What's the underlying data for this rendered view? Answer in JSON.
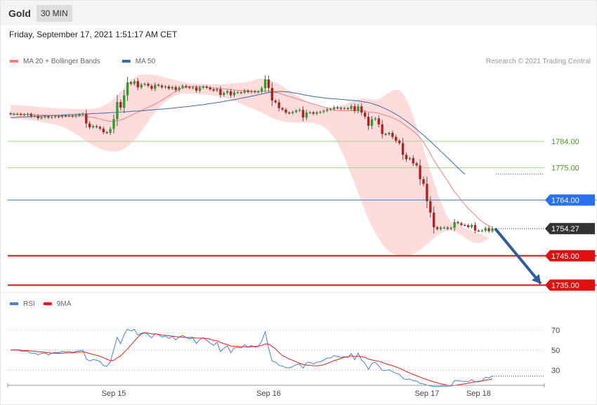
{
  "header": {
    "symbol": "Gold",
    "timeframe": "30 MIN"
  },
  "date_text": "Friday, September 17, 2021 1:51:17 AM CET",
  "colors": {
    "bb": "#f08080",
    "ma50": "#3a6aa8",
    "rsi": "#4a7fd4",
    "rsi_ma": "#e02020",
    "up": "#2ca02c",
    "down": "#b22222",
    "arrow": "#2f5d9a"
  },
  "chart_data": [
    {
      "type": "candlestick",
      "legend": [
        {
          "label": "MA 20 + Bollinger Bands",
          "color": "#f08080"
        },
        {
          "label": "MA 50",
          "color": "#3a6aa8"
        }
      ],
      "credit": "Research © 2021 Trading Central",
      "ylim": [
        1732,
        1813
      ],
      "x_ticks": [
        {
          "label": "Sep 15",
          "index": 30
        },
        {
          "label": "Sep 16",
          "index": 75
        },
        {
          "label": "Sep 17",
          "index": 121
        },
        {
          "label": "Sep 18",
          "index": 136
        }
      ],
      "levels": [
        {
          "value": 1784.0,
          "label": "1784.00",
          "kind": "resistance"
        },
        {
          "value": 1775.0,
          "label": "1775.00",
          "kind": "resistance"
        },
        {
          "value": 1764.0,
          "label": "1764.00",
          "kind": "pivot"
        },
        {
          "value": 1754.27,
          "label": "1754.27",
          "kind": "last"
        },
        {
          "value": 1745.0,
          "label": "1745.00",
          "kind": "support"
        },
        {
          "value": 1735.0,
          "label": "1735.00",
          "kind": "support"
        }
      ],
      "closes": [
        1793.3,
        1793.3,
        1793.3,
        1793.1,
        1793.1,
        1793.3,
        1792.6,
        1792.7,
        1791.9,
        1792.2,
        1792.5,
        1792.1,
        1792.3,
        1792.5,
        1792.3,
        1792.7,
        1792.6,
        1792.7,
        1792.5,
        1792.8,
        1793.1,
        1793.4,
        1790.1,
        1788.8,
        1789.2,
        1788.9,
        1788.3,
        1787.1,
        1786.9,
        1788.2,
        1791.6,
        1797.4,
        1795.5,
        1799.7,
        1804.1,
        1803.6,
        1804.5,
        1802.4,
        1803.3,
        1803.6,
        1802.9,
        1801.9,
        1803.3,
        1803.0,
        1802.4,
        1802.7,
        1802.0,
        1802.5,
        1801.5,
        1802.3,
        1802.9,
        1802.5,
        1802.2,
        1802.4,
        1801.3,
        1802.3,
        1802.7,
        1802.3,
        1801.7,
        1801.3,
        1801.8,
        1799.8,
        1800.5,
        1801.1,
        1799.7,
        1800.7,
        1800.7,
        1800.6,
        1801.3,
        1800.8,
        1801.1,
        1800.8,
        1801.0,
        1802.1,
        1805.1,
        1802.2,
        1797.9,
        1797.3,
        1795.3,
        1794.8,
        1793.8,
        1793.6,
        1794.0,
        1794.5,
        1794.7,
        1792.1,
        1793.8,
        1793.9,
        1793.4,
        1793.9,
        1794.0,
        1794.4,
        1794.9,
        1795.0,
        1795.6,
        1795.4,
        1795.1,
        1795.3,
        1795.1,
        1796.0,
        1794.4,
        1795.9,
        1793.8,
        1792.4,
        1789.3,
        1791.5,
        1791.8,
        1789.8,
        1786.5,
        1786.4,
        1786.9,
        1785.5,
        1784.2,
        1783.4,
        1779.4,
        1777.9,
        1778.3,
        1776.5,
        1775.8,
        1771.1,
        1769.5,
        1763.6,
        1759.7,
        1754.7,
        1754.1,
        1754.6,
        1754.6,
        1754.2,
        1754.5,
        1756.5,
        1756.1,
        1755.5,
        1755.4,
        1754.8,
        1755.5,
        1753.6,
        1753.5,
        1753.6,
        1754.4,
        1753.4,
        1754.3
      ],
      "ma20": [
        1793.4,
        1793.3,
        1793.3,
        1793.3,
        1793.2,
        1793.3,
        1793.2,
        1793.1,
        1793.0,
        1792.9,
        1792.9,
        1792.8,
        1792.8,
        1792.8,
        1792.7,
        1792.7,
        1792.7,
        1792.7,
        1792.7,
        1792.7,
        1792.7,
        1792.7,
        1792.5,
        1792.3,
        1792.1,
        1791.9,
        1791.6,
        1791.3,
        1791.0,
        1790.8,
        1790.8,
        1791.1,
        1791.3,
        1791.7,
        1792.3,
        1792.8,
        1793.4,
        1793.9,
        1794.5,
        1795.0,
        1795.6,
        1796.1,
        1796.7,
        1797.4,
        1798.1,
        1798.8,
        1799.5,
        1800.3,
        1801.0,
        1801.7,
        1802.2,
        1802.4,
        1802.7,
        1802.8,
        1802.7,
        1802.6,
        1802.5,
        1802.4,
        1802.3,
        1802.2,
        1802.1,
        1802.0,
        1801.9,
        1801.8,
        1801.6,
        1801.5,
        1801.4,
        1801.3,
        1801.3,
        1801.2,
        1801.1,
        1801.0,
        1801.0,
        1801.0,
        1801.1,
        1801.1,
        1800.9,
        1800.7,
        1800.4,
        1800.0,
        1799.6,
        1799.3,
        1799.0,
        1798.6,
        1798.2,
        1797.8,
        1797.5,
        1797.1,
        1796.7,
        1796.4,
        1796.0,
        1795.7,
        1795.4,
        1795.0,
        1794.6,
        1794.5,
        1794.5,
        1794.4,
        1794.4,
        1794.5,
        1794.4,
        1794.5,
        1794.4,
        1794.3,
        1794.0,
        1793.9,
        1793.8,
        1793.6,
        1793.2,
        1792.8,
        1792.5,
        1792.0,
        1791.5,
        1790.9,
        1790.1,
        1789.2,
        1788.4,
        1787.5,
        1786.5,
        1785.2,
        1783.8,
        1781.8,
        1779.8,
        1777.6,
        1775.8,
        1774.0,
        1772.3,
        1770.5,
        1768.6,
        1766.9,
        1765.4,
        1763.9,
        1762.5,
        1761.1,
        1760.0,
        1758.9,
        1757.7,
        1756.6,
        1755.9,
        1755.2,
        1754.7
      ],
      "bb_upper": [
        1796.5,
        1796.4,
        1796.4,
        1796.3,
        1796.2,
        1796.1,
        1796.0,
        1795.9,
        1795.8,
        1795.7,
        1795.6,
        1795.5,
        1795.4,
        1795.3,
        1795.3,
        1795.2,
        1795.2,
        1795.1,
        1795.1,
        1795.0,
        1795.0,
        1795.0,
        1795.0,
        1795.0,
        1795.1,
        1795.3,
        1795.6,
        1796.1,
        1796.7,
        1797.5,
        1798.5,
        1799.6,
        1800.8,
        1802.2,
        1803.7,
        1805.0,
        1805.7,
        1806.4,
        1806.8,
        1806.9,
        1806.9,
        1806.8,
        1806.6,
        1806.4,
        1806.1,
        1805.8,
        1805.5,
        1805.2,
        1804.9,
        1804.6,
        1804.3,
        1804.1,
        1803.9,
        1803.8,
        1803.7,
        1803.6,
        1803.5,
        1803.5,
        1803.5,
        1803.5,
        1803.5,
        1803.5,
        1803.5,
        1803.6,
        1803.7,
        1803.8,
        1803.9,
        1804.0,
        1804.1,
        1804.3,
        1804.6,
        1805.0,
        1805.3,
        1805.4,
        1805.3,
        1805.0,
        1804.6,
        1804.1,
        1803.5,
        1802.8,
        1802.0,
        1801.3,
        1800.5,
        1799.7,
        1799.0,
        1798.3,
        1797.6,
        1797.0,
        1796.5,
        1796.1,
        1795.8,
        1795.6,
        1795.5,
        1795.5,
        1795.6,
        1795.8,
        1796.1,
        1796.5,
        1797.0,
        1797.6,
        1798.1,
        1798.5,
        1798.6,
        1798.6,
        1798.5,
        1798.3,
        1798.1,
        1798.4,
        1799.0,
        1799.8,
        1800.6,
        1801.3,
        1801.6,
        1801.4,
        1800.3,
        1798.4,
        1795.8,
        1792.6,
        1789.1,
        1785.4,
        1781.6,
        1777.7,
        1773.9,
        1770.2,
        1766.7,
        1763.5,
        1760.6,
        1758.1,
        1756.6,
        1756.0
      ],
      "bb_lower": [
        1791.8,
        1791.7,
        1791.6,
        1791.5,
        1791.4,
        1791.3,
        1791.2,
        1791.0,
        1790.8,
        1790.6,
        1790.4,
        1790.2,
        1790.0,
        1789.7,
        1789.4,
        1789.0,
        1788.5,
        1787.9,
        1787.2,
        1786.5,
        1785.7,
        1784.9,
        1784.1,
        1783.3,
        1782.6,
        1782.0,
        1781.5,
        1781.1,
        1780.8,
        1780.6,
        1780.5,
        1780.6,
        1780.9,
        1781.4,
        1782.2,
        1783.2,
        1784.4,
        1785.8,
        1787.4,
        1789.1,
        1790.8,
        1792.4,
        1793.9,
        1795.3,
        1796.5,
        1797.5,
        1798.4,
        1799.1,
        1799.6,
        1800.0,
        1800.2,
        1800.3,
        1800.3,
        1800.3,
        1800.2,
        1800.1,
        1800.0,
        1799.9,
        1799.8,
        1799.6,
        1799.4,
        1799.2,
        1798.9,
        1798.6,
        1798.2,
        1797.8,
        1797.3,
        1796.8,
        1796.3,
        1795.8,
        1795.3,
        1794.8,
        1794.3,
        1793.8,
        1793.2,
        1792.6,
        1792.0,
        1791.5,
        1791.1,
        1790.8,
        1790.6,
        1790.5,
        1790.4,
        1790.4,
        1790.4,
        1790.4,
        1790.4,
        1790.3,
        1790.2,
        1790.0,
        1789.6,
        1789.0,
        1788.1,
        1786.9,
        1785.3,
        1783.4,
        1781.1,
        1778.5,
        1775.6,
        1772.6,
        1769.5,
        1766.4,
        1763.3,
        1760.4,
        1757.6,
        1755.1,
        1752.8,
        1750.8,
        1749.0,
        1747.6,
        1746.5,
        1745.8,
        1745.3,
        1745.1,
        1745.0,
        1745.1,
        1745.3,
        1745.7,
        1746.3,
        1747.1,
        1748.0,
        1749.0,
        1750.0,
        1751.0,
        1751.9,
        1752.7,
        1753.3,
        1753.6,
        1753.6,
        1753.3,
        1752.7,
        1752.0,
        1751.2,
        1750.4,
        1749.8,
        1749.4,
        1749.3,
        1749.6,
        1750.2,
        1751.1
      ],
      "ma50": [
        1792.1,
        1792.1,
        1792.2,
        1792.3,
        1792.3,
        1792.4,
        1792.4,
        1792.5,
        1792.5,
        1792.6,
        1792.7,
        1792.7,
        1792.8,
        1792.8,
        1792.9,
        1792.9,
        1793.0,
        1793.1,
        1793.1,
        1793.2,
        1793.2,
        1793.3,
        1793.3,
        1793.4,
        1793.5,
        1793.5,
        1793.6,
        1793.6,
        1793.7,
        1793.8,
        1793.8,
        1793.9,
        1794.0,
        1794.0,
        1794.1,
        1794.2,
        1794.3,
        1794.3,
        1794.4,
        1794.5,
        1794.6,
        1794.7,
        1794.8,
        1794.9,
        1795.0,
        1795.1,
        1795.2,
        1795.3,
        1795.4,
        1795.6,
        1795.7,
        1795.8,
        1795.9,
        1796.1,
        1796.2,
        1796.4,
        1796.5,
        1796.7,
        1796.9,
        1797.0,
        1797.2,
        1797.4,
        1797.6,
        1797.8,
        1798.0,
        1798.2,
        1798.4,
        1798.7,
        1798.9,
        1799.1,
        1799.4,
        1799.6,
        1799.9,
        1800.1,
        1800.4,
        1800.6,
        1800.8,
        1800.9,
        1801.0,
        1801.0,
        1800.9,
        1800.8,
        1800.6,
        1800.4,
        1800.2,
        1799.9,
        1799.7,
        1799.5,
        1799.3,
        1799.1,
        1799.0,
        1798.8,
        1798.7,
        1798.6,
        1798.5,
        1798.4,
        1798.3,
        1798.2,
        1798.1,
        1798.0,
        1797.9,
        1797.8,
        1797.6,
        1797.4,
        1797.2,
        1796.9,
        1796.5,
        1796.1,
        1795.6,
        1795.1,
        1794.5,
        1793.9,
        1793.2,
        1792.5,
        1791.7,
        1790.9,
        1790.0,
        1789.1,
        1788.1,
        1787.1,
        1786.1,
        1785.0,
        1784.0,
        1782.9,
        1781.8,
        1780.6,
        1779.5,
        1778.4,
        1777.3,
        1776.1,
        1775.0,
        1773.9,
        1772.8
      ],
      "target_arrow": {
        "from_index": 140,
        "from_value": 1754.27,
        "to_value": 1735.0
      }
    },
    {
      "type": "line",
      "legend": [
        {
          "label": "RSI",
          "color": "#4a7fd4"
        },
        {
          "label": "9MA",
          "color": "#e02020"
        }
      ],
      "ylim": [
        17,
        87
      ],
      "y_ticks": [
        70,
        50,
        30
      ],
      "series": [
        {
          "name": "RSI",
          "values": [
            50.1,
            50.2,
            50.3,
            48.9,
            48.9,
            48.8,
            46.8,
            47.0,
            45.3,
            46.6,
            47.1,
            45.2,
            46.7,
            47.8,
            47.3,
            48.7,
            48.1,
            48.6,
            47.5,
            48.6,
            49.2,
            49.9,
            41.3,
            39.1,
            40.6,
            39.8,
            38.6,
            34.5,
            34.0,
            38.3,
            50.6,
            62.7,
            56.3,
            65.3,
            70.8,
            69.0,
            70.6,
            64.8,
            66.7,
            67.5,
            65.2,
            62.2,
            66.4,
            65.2,
            62.9,
            64.0,
            61.6,
            63.6,
            60.1,
            62.9,
            64.7,
            62.6,
            61.1,
            62.1,
            56.5,
            60.5,
            62.4,
            59.9,
            56.8,
            54.7,
            57.7,
            48.4,
            51.7,
            54.3,
            47.4,
            52.2,
            52.6,
            52.1,
            55.3,
            53.0,
            54.4,
            52.7,
            53.8,
            58.8,
            68.3,
            51.7,
            39.1,
            38.1,
            34.8,
            34.1,
            32.5,
            32.3,
            33.6,
            35.5,
            36.1,
            31.9,
            37.3,
            37.7,
            36.1,
            38.0,
            38.3,
            40.1,
            42.0,
            42.2,
            44.5,
            43.6,
            42.6,
            43.5,
            42.6,
            46.6,
            40.3,
            47.0,
            40.1,
            36.7,
            30.7,
            36.6,
            37.8,
            34.3,
            29.7,
            29.6,
            30.4,
            28.6,
            26.9,
            25.8,
            21.8,
            20.6,
            21.2,
            19.6,
            19.1,
            16.8,
            16.4,
            15.0,
            14.4,
            13.7,
            13.6,
            14.0,
            14.0,
            13.9,
            14.3,
            19.7,
            19.5,
            19.0,
            18.9,
            18.5,
            20.6,
            18.5,
            18.4,
            19.2,
            23.0,
            22.4,
            24.0
          ]
        },
        {
          "name": "9MA",
          "values": [
            50.0,
            50.1,
            50.2,
            49.9,
            49.6,
            49.5,
            49.1,
            48.8,
            48.4,
            48.1,
            47.8,
            47.3,
            46.9,
            46.8,
            46.7,
            46.9,
            47.1,
            47.2,
            47.2,
            47.6,
            47.9,
            48.2,
            47.5,
            46.5,
            45.6,
            44.8,
            43.8,
            42.4,
            40.9,
            39.5,
            39.8,
            42.3,
            44.2,
            47.7,
            51.1,
            55.1,
            59.1,
            62.8,
            66.0,
            67.2,
            66.8,
            66.0,
            66.0,
            65.8,
            64.8,
            64.8,
            64.2,
            63.9,
            63.3,
            63.1,
            62.8,
            62.5,
            62.5,
            62.5,
            61.9,
            61.9,
            61.8,
            61.6,
            60.8,
            59.7,
            59.3,
            57.6,
            56.3,
            55.5,
            54.0,
            53.8,
            53.7,
            53.2,
            53.4,
            52.8,
            53.4,
            53.7,
            53.9,
            54.6,
            56.1,
            56.0,
            53.7,
            51.3,
            47.5,
            44.5,
            42.8,
            41.0,
            39.8,
            38.4,
            36.9,
            35.6,
            35.0,
            34.8,
            34.4,
            34.3,
            34.6,
            35.4,
            36.6,
            37.9,
            39.5,
            40.4,
            41.6,
            42.8,
            43.3,
            44.2,
            43.5,
            43.9,
            43.3,
            42.8,
            40.9,
            40.2,
            39.4,
            38.9,
            37.7,
            36.5,
            35.5,
            34.4,
            33.3,
            31.9,
            30.4,
            28.6,
            27.2,
            25.7,
            24.4,
            23.1,
            21.8,
            20.6,
            19.4,
            18.3,
            17.4,
            16.4,
            15.7,
            15.1,
            14.5,
            14.8,
            15.4,
            15.9,
            16.5,
            17.0,
            17.7,
            18.3,
            18.8,
            19.4,
            20.0,
            20.5,
            21.1
          ]
        }
      ]
    }
  ]
}
